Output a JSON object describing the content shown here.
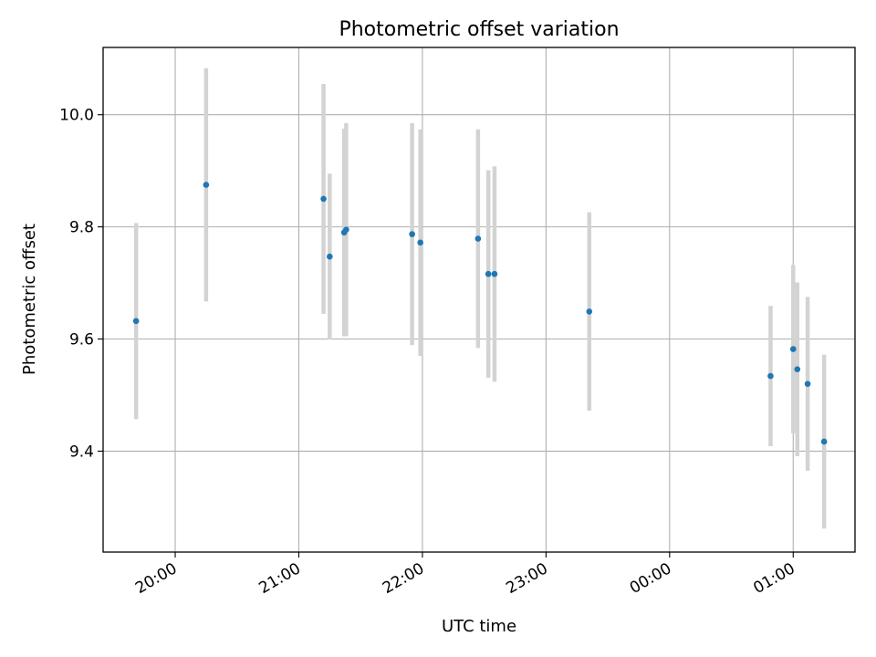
{
  "chart_data": {
    "type": "scatter",
    "title": "Photometric offset variation",
    "xlabel": "UTC time",
    "ylabel": "Photometric offset",
    "grid": true,
    "xlim": [
      "19:25",
      "01:30"
    ],
    "ylim": [
      9.22,
      10.12
    ],
    "x_ticks": [
      "20:00",
      "21:00",
      "22:00",
      "23:00",
      "00:00",
      "01:00"
    ],
    "y_ticks": [
      "9.4",
      "9.6",
      "9.8",
      "10.0"
    ],
    "points": [
      {
        "time": "19:41",
        "y": 9.632,
        "err": 0.175
      },
      {
        "time": "20:15",
        "y": 9.875,
        "err": 0.208
      },
      {
        "time": "21:12",
        "y": 9.85,
        "err": 0.205
      },
      {
        "time": "21:15",
        "y": 9.747,
        "err": 0.148
      },
      {
        "time": "21:22",
        "y": 9.79,
        "err": 0.185
      },
      {
        "time": "21:23",
        "y": 9.795,
        "err": 0.19
      },
      {
        "time": "21:55",
        "y": 9.787,
        "err": 0.198
      },
      {
        "time": "21:59",
        "y": 9.772,
        "err": 0.202
      },
      {
        "time": "22:27",
        "y": 9.779,
        "err": 0.195
      },
      {
        "time": "22:32",
        "y": 9.716,
        "err": 0.185
      },
      {
        "time": "22:35",
        "y": 9.716,
        "err": 0.192
      },
      {
        "time": "23:21",
        "y": 9.649,
        "err": 0.177
      },
      {
        "time": "00:49",
        "y": 9.534,
        "err": 0.125
      },
      {
        "time": "01:00",
        "y": 9.582,
        "err": 0.15
      },
      {
        "time": "01:02",
        "y": 9.546,
        "err": 0.155
      },
      {
        "time": "01:07",
        "y": 9.52,
        "err": 0.155
      },
      {
        "time": "01:15",
        "y": 9.417,
        "err": 0.155
      }
    ],
    "colors": {
      "marker": "#1f77b4",
      "errorbar": "#d3d3d3",
      "grid": "#b0b0b0"
    }
  }
}
